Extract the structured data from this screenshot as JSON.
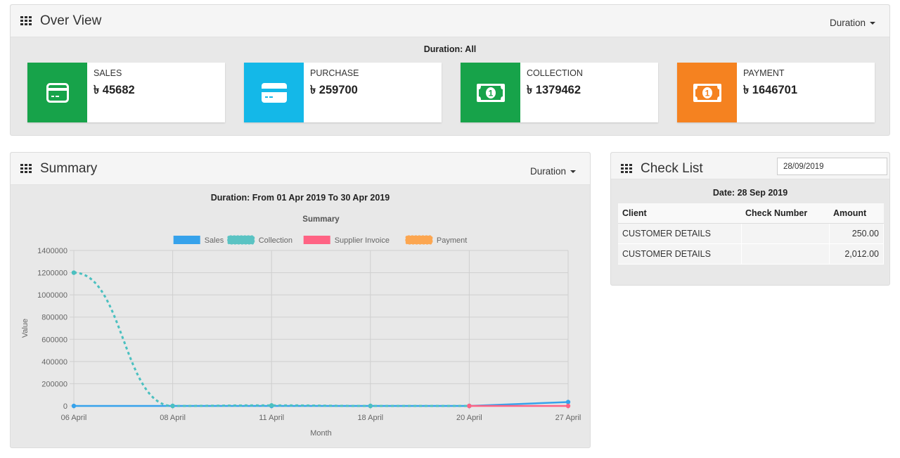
{
  "overview": {
    "title": "Over View",
    "dropdown": "Duration",
    "caption": "Duration: All",
    "cards": [
      {
        "label": "SALES",
        "value": "৳ 45682",
        "color": "#17a34a",
        "icon": "credit-card-icon"
      },
      {
        "label": "PURCHASE",
        "value": "৳ 259700",
        "color": "#14b8e8",
        "icon": "credit-card-icon"
      },
      {
        "label": "COLLECTION",
        "value": "৳ 1379462",
        "color": "#17a34a",
        "icon": "money-bill-icon"
      },
      {
        "label": "PAYMENT",
        "value": "৳ 1646701",
        "color": "#f58220",
        "icon": "money-bill-icon"
      }
    ]
  },
  "summary": {
    "title": "Summary",
    "dropdown": "Duration",
    "caption": "Duration: From 01 Apr 2019 To 30 Apr 2019"
  },
  "checklist": {
    "title": "Check List",
    "date_value": "28/09/2019",
    "caption": "Date: 28 Sep 2019",
    "columns": [
      "Client",
      "Check Number",
      "Amount"
    ],
    "rows": [
      {
        "client": "CUSTOMER DETAILS",
        "check_number": "",
        "amount": "250.00"
      },
      {
        "client": "CUSTOMER DETAILS",
        "check_number": "",
        "amount": "2,012.00"
      }
    ]
  },
  "chart_data": {
    "type": "line",
    "title": "Summary",
    "xlabel": "Month",
    "ylabel": "Value",
    "ylim": [
      0,
      1400000
    ],
    "yticks": [
      0,
      200000,
      400000,
      600000,
      800000,
      1000000,
      1200000,
      1400000
    ],
    "categories": [
      "06 April",
      "08 April",
      "11 April",
      "18 April",
      "20 April",
      "27 April"
    ],
    "legend_position": "top",
    "grid": true,
    "series": [
      {
        "name": "Sales",
        "color": "#36a2eb",
        "style": "solid",
        "values": [
          0,
          0,
          0,
          0,
          0,
          35000
        ]
      },
      {
        "name": "Collection",
        "color": "#4bc0c0",
        "style": "dashed",
        "values": [
          1200000,
          0,
          5000,
          0,
          0,
          null
        ]
      },
      {
        "name": "Supplier Invoice",
        "color": "#ff6384",
        "style": "solid",
        "values": [
          null,
          null,
          null,
          null,
          0,
          0
        ]
      },
      {
        "name": "Payment",
        "color": "#ff9f40",
        "style": "dashed",
        "values": [
          null,
          null,
          null,
          null,
          null,
          null
        ]
      }
    ]
  }
}
